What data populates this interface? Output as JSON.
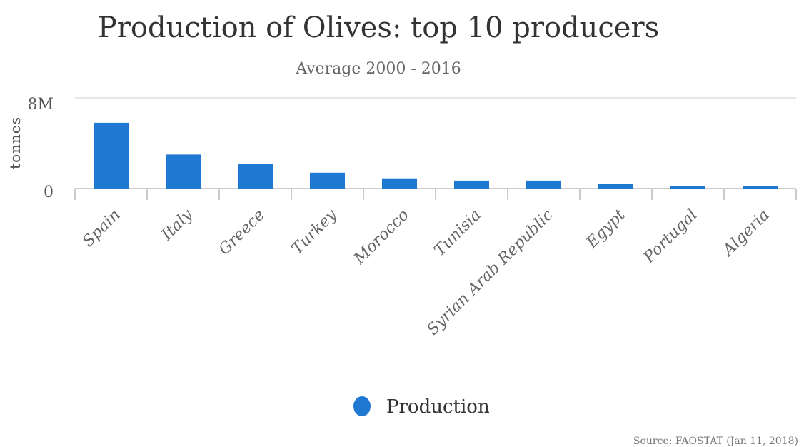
{
  "chart_data": {
    "type": "bar",
    "title": "Production of Olives: top 10 producers",
    "subtitle": "Average 2000 - 2016",
    "ylabel": "tonnes",
    "ylim": [
      0,
      8000000
    ],
    "yticks": [
      "0",
      "8M"
    ],
    "grid": true,
    "legend_position": "bottom-center",
    "categories": [
      "Spain",
      "Italy",
      "Greece",
      "Turkey",
      "Morocco",
      "Tunisia",
      "Syrian Arab Republic",
      "Egypt",
      "Portugal",
      "Algeria"
    ],
    "series": [
      {
        "name": "Production",
        "color": "#1f78d1",
        "values": [
          5800000,
          3000000,
          2200000,
          1400000,
          900000,
          700000,
          700000,
          400000,
          250000,
          250000
        ]
      }
    ],
    "source": "Source: FAOSTAT (Jan 11, 2018)"
  }
}
